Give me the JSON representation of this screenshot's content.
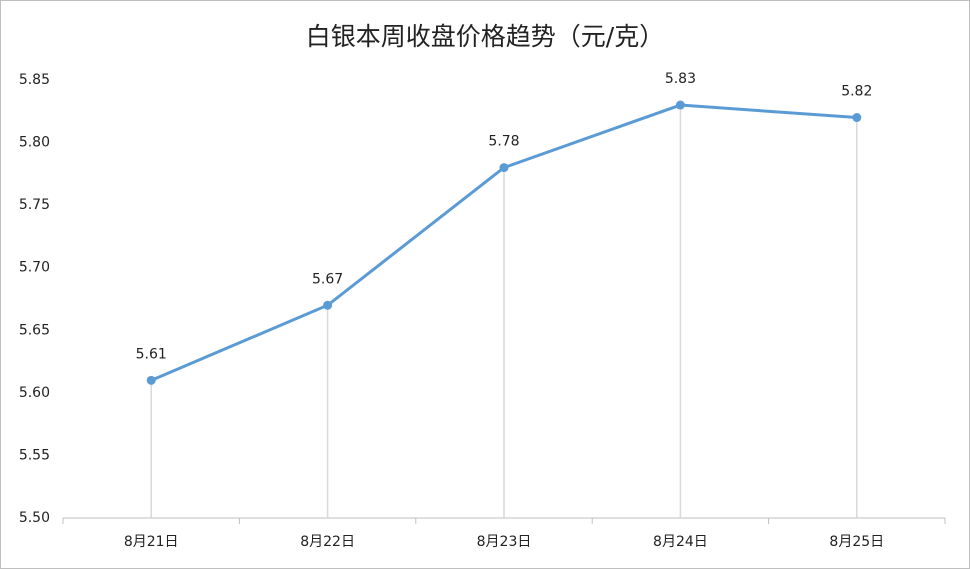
{
  "chart_data": {
    "type": "line",
    "title": "白银本周收盘价格趋势（元/克）",
    "categories": [
      "8月21日",
      "8月22日",
      "8月23日",
      "8月24日",
      "8月25日"
    ],
    "values": [
      5.61,
      5.67,
      5.78,
      5.83,
      5.82
    ],
    "color": "#5b9bd5",
    "ylim": [
      5.5,
      5.85
    ],
    "yticks": [
      {
        "value": 5.5,
        "label": "5.50"
      },
      5.55,
      {
        "value": 5.6,
        "label": "5.60"
      },
      5.65,
      {
        "value": 5.7,
        "label": "5.70"
      },
      5.75,
      {
        "value": 5.8,
        "label": "5.80"
      },
      5.85
    ],
    "drop_lines": true
  }
}
